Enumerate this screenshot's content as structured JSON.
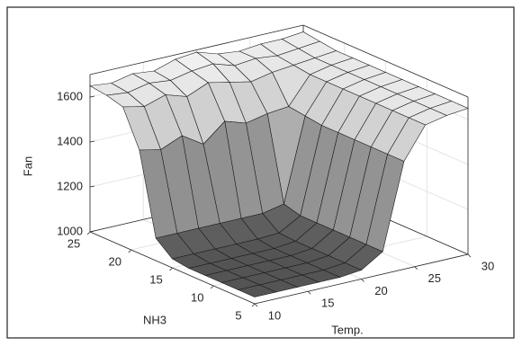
{
  "chart_data": {
    "type": "surface",
    "xlabel": "Temp.",
    "ylabel": "NH3",
    "zlabel": "Fan",
    "x": [
      10,
      12,
      14,
      16,
      18,
      20,
      22,
      24,
      26,
      28,
      30
    ],
    "y": [
      5,
      7,
      9,
      11,
      13,
      15,
      17,
      19,
      21,
      23,
      25
    ],
    "z": [
      [
        1030,
        1030,
        1030,
        1030,
        1030,
        1040,
        1100,
        1480,
        1620,
        1640,
        1650
      ],
      [
        1030,
        1030,
        1030,
        1030,
        1030,
        1040,
        1100,
        1480,
        1620,
        1640,
        1650
      ],
      [
        1030,
        1030,
        1030,
        1030,
        1030,
        1040,
        1100,
        1480,
        1620,
        1640,
        1650
      ],
      [
        1030,
        1030,
        1030,
        1030,
        1030,
        1040,
        1100,
        1480,
        1620,
        1640,
        1650
      ],
      [
        1030,
        1030,
        1030,
        1030,
        1030,
        1040,
        1100,
        1480,
        1620,
        1640,
        1650
      ],
      [
        1040,
        1040,
        1040,
        1040,
        1040,
        1045,
        1100,
        1480,
        1620,
        1640,
        1650
      ],
      [
        1100,
        1100,
        1100,
        1100,
        1100,
        1100,
        1120,
        1490,
        1620,
        1640,
        1650
      ],
      [
        1460,
        1440,
        1480,
        1420,
        1500,
        1470,
        1490,
        1500,
        1620,
        1640,
        1650
      ],
      [
        1620,
        1600,
        1630,
        1600,
        1640,
        1620,
        1600,
        1620,
        1630,
        1640,
        1650
      ],
      [
        1640,
        1630,
        1650,
        1640,
        1660,
        1670,
        1640,
        1650,
        1640,
        1650,
        1660
      ],
      [
        1650,
        1640,
        1660,
        1650,
        1680,
        1690,
        1660,
        1650,
        1660,
        1660,
        1670
      ]
    ],
    "xlim": [
      10,
      30
    ],
    "xticks": [
      10,
      15,
      20,
      25,
      30
    ],
    "ylim": [
      5,
      25
    ],
    "yticks": [
      5,
      10,
      15,
      20,
      25
    ],
    "zlim": [
      1000,
      1700
    ],
    "zticks": [
      1000,
      1200,
      1400,
      1600
    ],
    "colors": [
      "#4d4d4d",
      "#f0f0f0"
    ],
    "grid": true
  }
}
